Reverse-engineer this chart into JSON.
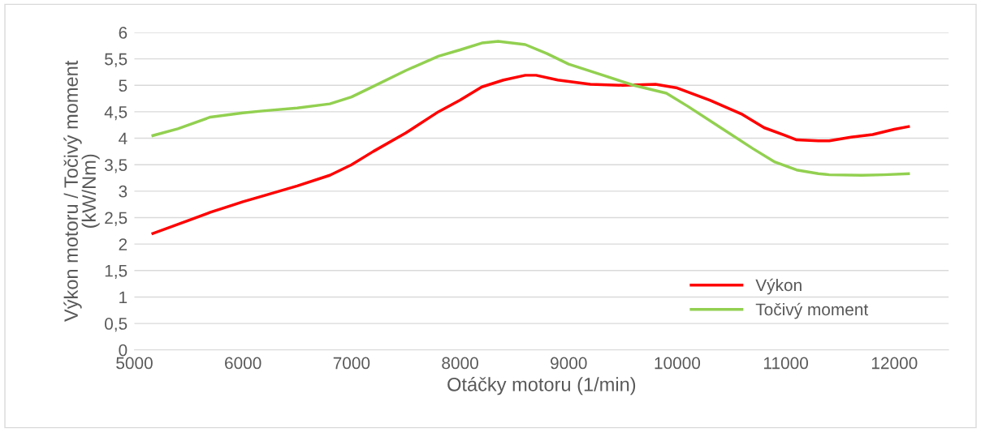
{
  "chart_data": {
    "type": "line",
    "xlabel": "Otáčky motoru (1/min)",
    "ylabel": "Výkon motoru / Točivý moment\n(kW/Nm)",
    "xlim": [
      5000,
      12500
    ],
    "xticks": [
      5000,
      6000,
      7000,
      8000,
      9000,
      10000,
      11000,
      12000
    ],
    "ylim": [
      0,
      6
    ],
    "yticks": [
      0,
      {
        "value": 0.5,
        "label": "0,5"
      },
      1,
      {
        "value": 1.5,
        "label": "1,5"
      },
      2,
      {
        "value": 2.5,
        "label": "2,5"
      },
      3,
      {
        "value": 3.5,
        "label": "3,5"
      },
      4,
      {
        "value": 4.5,
        "label": "4,5"
      },
      5,
      {
        "value": 5.5,
        "label": "5,5"
      },
      6
    ],
    "grid": "y",
    "legend": "bottom right",
    "marker": "none",
    "line_style": "solid",
    "series": [
      {
        "name": "Výkon",
        "color": "#ff0000",
        "x": [
          5170,
          5500,
          5700,
          6000,
          6200,
          6500,
          6800,
          7000,
          7200,
          7500,
          7800,
          8000,
          8200,
          8400,
          8600,
          8700,
          8900,
          9200,
          9500,
          9800,
          10000,
          10300,
          10600,
          10800,
          11000,
          11100,
          11300,
          11400,
          11600,
          11800,
          12000,
          12130
        ],
        "values": [
          2.2,
          2.45,
          2.6,
          2.8,
          2.92,
          3.1,
          3.3,
          3.5,
          3.75,
          4.1,
          4.5,
          4.72,
          4.97,
          5.1,
          5.19,
          5.19,
          5.1,
          5.02,
          5.0,
          5.02,
          4.95,
          4.72,
          4.45,
          4.2,
          4.05,
          3.97,
          3.95,
          3.95,
          4.02,
          4.07,
          4.17,
          4.22
        ]
      },
      {
        "name": "Točivý moment",
        "color": "#92d050",
        "x": [
          5170,
          5400,
          5700,
          6000,
          6200,
          6500,
          6800,
          7000,
          7200,
          7500,
          7800,
          8000,
          8200,
          8350,
          8600,
          8800,
          9000,
          9300,
          9600,
          9900,
          10100,
          10400,
          10700,
          10900,
          11100,
          11300,
          11400,
          11700,
          11900,
          12130
        ],
        "values": [
          4.05,
          4.18,
          4.4,
          4.48,
          4.52,
          4.57,
          4.65,
          4.78,
          4.98,
          5.28,
          5.55,
          5.67,
          5.8,
          5.83,
          5.77,
          5.6,
          5.4,
          5.2,
          5.0,
          4.85,
          4.6,
          4.2,
          3.8,
          3.55,
          3.4,
          3.33,
          3.31,
          3.3,
          3.31,
          3.33
        ]
      }
    ]
  }
}
